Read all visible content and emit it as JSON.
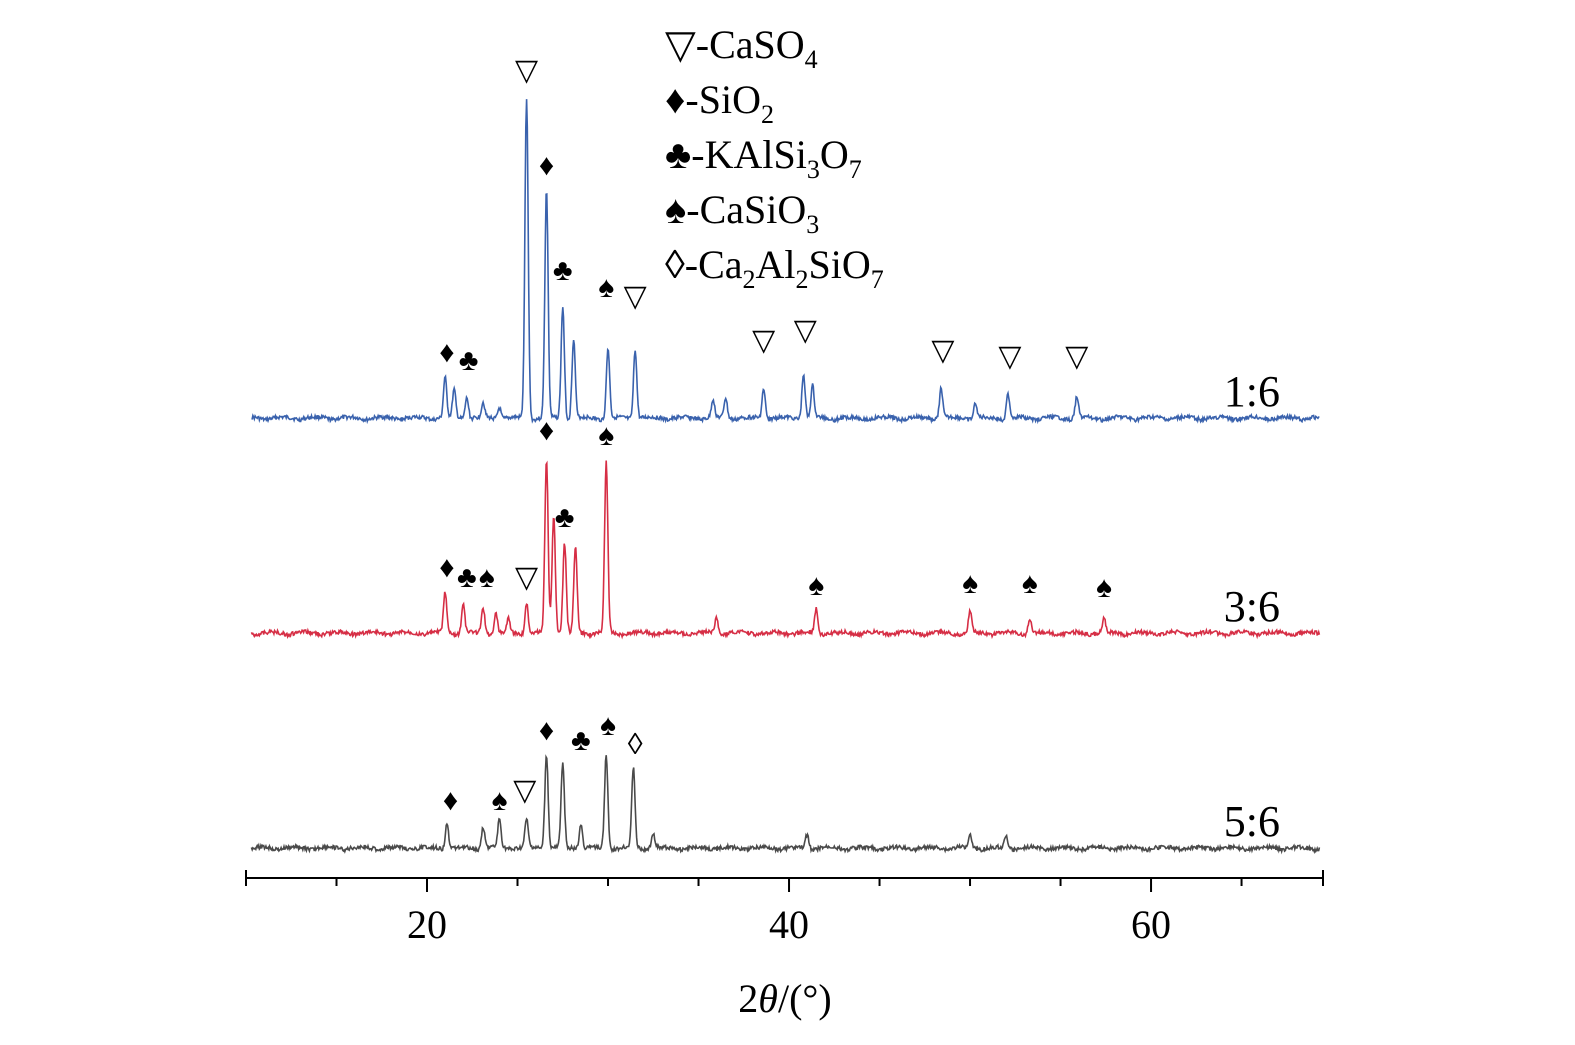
{
  "chart_data": {
    "type": "line",
    "xlabel": {
      "prefix": "2",
      "theta": "θ",
      "suffix": "/(°)"
    },
    "xlim": [
      10,
      69.5
    ],
    "xticks": [
      20,
      40,
      60
    ],
    "minor_xticks": [
      10,
      15,
      25,
      30,
      35,
      45,
      50,
      55,
      65
    ],
    "offsets": {
      "y_1_6": 420,
      "y_3_6": 635,
      "y_5_6": 850
    },
    "colors": {
      "s1_6": "#3a62ad",
      "s3_6": "#d62e45",
      "s5_6": "#4a4a4a"
    },
    "legend": [
      {
        "symbol": "▽",
        "name": "CaSO",
        "sub": "4",
        "tail": ""
      },
      {
        "symbol": "♦",
        "name": "SiO",
        "sub": "2",
        "tail": ""
      },
      {
        "symbol": "♣",
        "name": "KAlSi",
        "sub": "3",
        "tail": "O",
        "sub2": "7"
      },
      {
        "symbol": "♠",
        "name": "CaSiO",
        "sub": "3",
        "tail": ""
      },
      {
        "symbol": "◊",
        "name": "Ca",
        "sub": "2",
        "tail": "Al",
        "sub2": "2",
        "tail2": "SiO",
        "sub3": "7"
      }
    ],
    "series": [
      {
        "name": "1:6",
        "color": "#3a62ad",
        "peaks": [
          {
            "x": 21.0,
            "h": 40
          },
          {
            "x": 21.5,
            "h": 28
          },
          {
            "x": 22.2,
            "h": 22
          },
          {
            "x": 23.1,
            "h": 15
          },
          {
            "x": 24.0,
            "h": 12
          },
          {
            "x": 25.5,
            "h": 320
          },
          {
            "x": 26.6,
            "h": 228
          },
          {
            "x": 27.5,
            "h": 112
          },
          {
            "x": 28.1,
            "h": 80
          },
          {
            "x": 30.0,
            "h": 70
          },
          {
            "x": 31.5,
            "h": 70
          },
          {
            "x": 35.8,
            "h": 18
          },
          {
            "x": 36.5,
            "h": 20
          },
          {
            "x": 38.6,
            "h": 30
          },
          {
            "x": 40.8,
            "h": 45
          },
          {
            "x": 41.3,
            "h": 32
          },
          {
            "x": 48.4,
            "h": 30
          },
          {
            "x": 50.3,
            "h": 15
          },
          {
            "x": 52.1,
            "h": 24
          },
          {
            "x": 55.9,
            "h": 22
          }
        ],
        "markers": [
          {
            "x": 21.1,
            "h": 58,
            "symbol": "♦"
          },
          {
            "x": 22.3,
            "h": 50,
            "symbol": "♣"
          },
          {
            "x": 25.5,
            "h": 340,
            "symbol": "▽"
          },
          {
            "x": 26.6,
            "h": 245,
            "symbol": "♦"
          },
          {
            "x": 27.5,
            "h": 140,
            "symbol": "♣"
          },
          {
            "x": 29.9,
            "h": 123,
            "symbol": "♠"
          },
          {
            "x": 31.5,
            "h": 114,
            "symbol": "▽"
          },
          {
            "x": 38.6,
            "h": 70,
            "symbol": "▽"
          },
          {
            "x": 40.9,
            "h": 80,
            "symbol": "▽"
          },
          {
            "x": 48.5,
            "h": 60,
            "symbol": "▽"
          },
          {
            "x": 52.2,
            "h": 54,
            "symbol": "▽"
          },
          {
            "x": 55.9,
            "h": 54,
            "symbol": "▽"
          }
        ]
      },
      {
        "name": "3:6",
        "color": "#d62e45",
        "peaks": [
          {
            "x": 21.0,
            "h": 40
          },
          {
            "x": 22.0,
            "h": 28
          },
          {
            "x": 23.1,
            "h": 26
          },
          {
            "x": 23.8,
            "h": 20
          },
          {
            "x": 24.5,
            "h": 14
          },
          {
            "x": 25.5,
            "h": 30
          },
          {
            "x": 26.6,
            "h": 172
          },
          {
            "x": 27.0,
            "h": 120
          },
          {
            "x": 27.6,
            "h": 90
          },
          {
            "x": 28.2,
            "h": 85
          },
          {
            "x": 29.9,
            "h": 170
          },
          {
            "x": 36.0,
            "h": 15
          },
          {
            "x": 41.5,
            "h": 25
          },
          {
            "x": 50.0,
            "h": 22
          },
          {
            "x": 53.3,
            "h": 15
          },
          {
            "x": 57.4,
            "h": 14
          }
        ],
        "markers": [
          {
            "x": 21.1,
            "h": 58,
            "symbol": "♦"
          },
          {
            "x": 22.2,
            "h": 48,
            "symbol": "♣"
          },
          {
            "x": 23.3,
            "h": 48,
            "symbol": "♠"
          },
          {
            "x": 25.5,
            "h": 48,
            "symbol": "▽"
          },
          {
            "x": 26.6,
            "h": 195,
            "symbol": "♦"
          },
          {
            "x": 27.6,
            "h": 108,
            "symbol": "♣"
          },
          {
            "x": 29.9,
            "h": 190,
            "symbol": "♠"
          },
          {
            "x": 41.5,
            "h": 40,
            "symbol": "♠"
          },
          {
            "x": 50.0,
            "h": 42,
            "symbol": "♠"
          },
          {
            "x": 53.3,
            "h": 42,
            "symbol": "♠"
          },
          {
            "x": 57.4,
            "h": 38,
            "symbol": "♠"
          }
        ]
      },
      {
        "name": "5:6",
        "color": "#4a4a4a",
        "peaks": [
          {
            "x": 21.1,
            "h": 25
          },
          {
            "x": 23.1,
            "h": 22
          },
          {
            "x": 24.0,
            "h": 28
          },
          {
            "x": 25.5,
            "h": 28
          },
          {
            "x": 26.6,
            "h": 95
          },
          {
            "x": 27.5,
            "h": 85
          },
          {
            "x": 28.5,
            "h": 25
          },
          {
            "x": 29.9,
            "h": 95
          },
          {
            "x": 31.4,
            "h": 80
          },
          {
            "x": 32.5,
            "h": 15
          },
          {
            "x": 41.0,
            "h": 14
          },
          {
            "x": 50.0,
            "h": 14
          },
          {
            "x": 52.0,
            "h": 12
          }
        ],
        "markers": [
          {
            "x": 21.3,
            "h": 40,
            "symbol": "♦"
          },
          {
            "x": 24.0,
            "h": 40,
            "symbol": "♠"
          },
          {
            "x": 25.4,
            "h": 50,
            "symbol": "▽"
          },
          {
            "x": 26.6,
            "h": 110,
            "symbol": "♦"
          },
          {
            "x": 28.5,
            "h": 100,
            "symbol": "♣"
          },
          {
            "x": 30.0,
            "h": 115,
            "symbol": "♠"
          },
          {
            "x": 31.5,
            "h": 96,
            "symbol": "◊"
          }
        ]
      }
    ]
  }
}
